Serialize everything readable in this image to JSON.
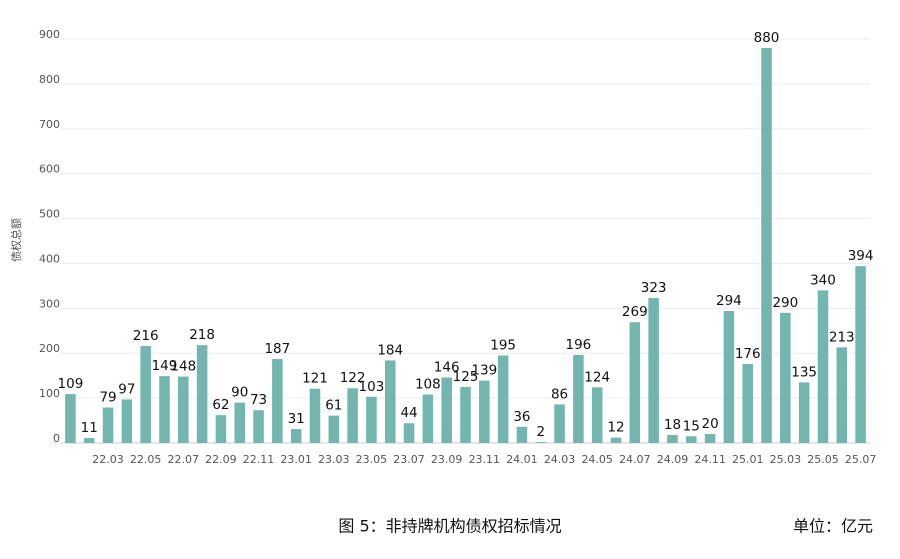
{
  "chart_data": {
    "type": "bar",
    "y_label": "债权总额",
    "caption": "图 5：非持牌机构债权招标情况",
    "unit": "单位：亿元",
    "categories": [
      null,
      null,
      "22.03",
      null,
      "22.05",
      null,
      "22.07",
      null,
      "22.09",
      null,
      "22.11",
      null,
      "23.01",
      null,
      "23.03",
      null,
      "23.05",
      null,
      "23.07",
      null,
      "23.09",
      null,
      "23.11",
      null,
      "24.01",
      null,
      "24.03",
      null,
      "24.05",
      null,
      "24.07",
      null,
      "24.09",
      null,
      "24.11",
      null,
      "25.01",
      null,
      "25.03",
      null,
      "25.05",
      null,
      "25.07"
    ],
    "values": [
      109,
      11,
      79,
      97,
      216,
      149,
      148,
      218,
      62,
      90,
      73,
      187,
      31,
      121,
      61,
      122,
      103,
      184,
      44,
      108,
      146,
      125,
      139,
      195,
      36,
      2,
      86,
      196,
      124,
      12,
      269,
      323,
      18,
      15,
      20,
      294,
      176,
      880,
      290,
      135,
      340,
      213,
      394
    ],
    "color": "#72b6ae",
    "ylim": [
      0,
      900
    ],
    "yticks": [
      0,
      100,
      200,
      300,
      400,
      500,
      600,
      700,
      800,
      900
    ],
    "grid": true
  }
}
